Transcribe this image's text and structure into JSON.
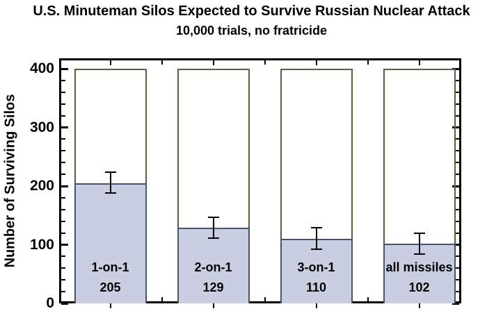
{
  "chart_data": {
    "type": "bar",
    "title": "U.S. Minuteman Silos Expected to Survive Russian Nuclear Attack",
    "subtitle": "10,000 trials, no fratricide",
    "ylabel": "Number of Surviving Silos",
    "xlabel": "",
    "categories": [
      "1-on-1",
      "2-on-1",
      "3-on-1",
      "all missiles"
    ],
    "values": [
      205,
      129,
      110,
      102
    ],
    "value_labels": [
      "205",
      "129",
      "110",
      "102"
    ],
    "errors": [
      {
        "low": 17,
        "high": 19
      },
      {
        "low": 18,
        "high": 18
      },
      {
        "low": 18,
        "high": 19
      },
      {
        "low": 18,
        "high": 18
      }
    ],
    "ylim": [
      0,
      400
    ],
    "ytick_major": 100,
    "ytick_minor": 20,
    "reference_box_top": 400,
    "grid": false,
    "legend": false,
    "colors": {
      "bar_fill": "#c9cee0",
      "bar_border": "#46536e",
      "reference_outline": "#605d3a",
      "error_bar": "#000000",
      "axis": "#000000",
      "text": "#000000",
      "background": "#ffffff"
    }
  }
}
